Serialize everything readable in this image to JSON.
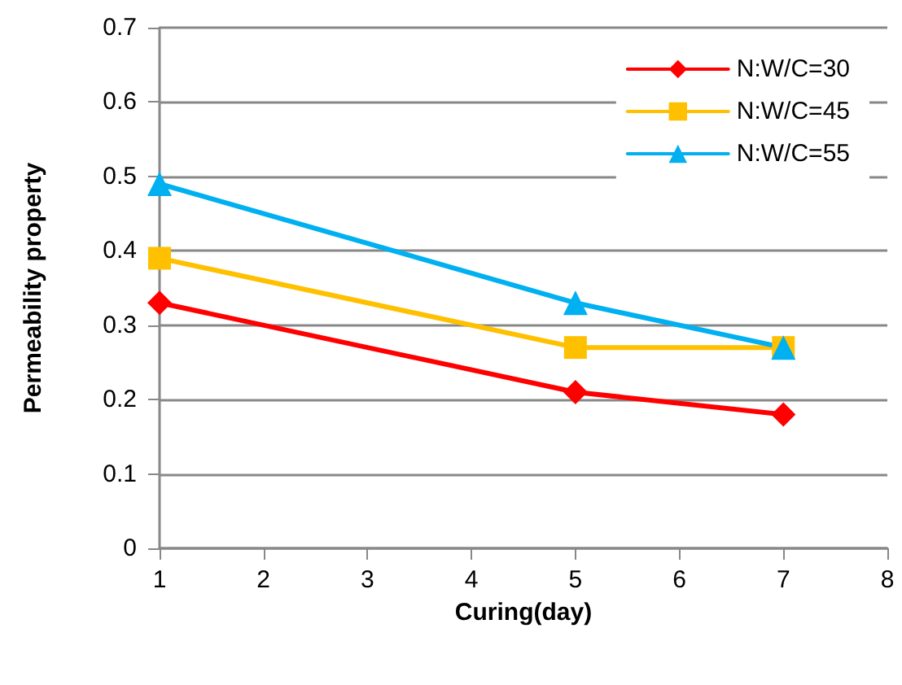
{
  "chart_data": {
    "type": "line",
    "xlabel": "Curing(day)",
    "ylabel": "Permeability property",
    "x": [
      1,
      5,
      7
    ],
    "series": [
      {
        "name": "N:W/C=30",
        "color": "#ff0000",
        "marker": "diamond",
        "values": [
          0.33,
          0.21,
          0.18
        ]
      },
      {
        "name": "N:W/C=45",
        "color": "#ffc000",
        "marker": "square",
        "values": [
          0.39,
          0.27,
          0.27
        ]
      },
      {
        "name": "N:W/C=55",
        "color": "#00b0f0",
        "marker": "triangle",
        "values": [
          0.49,
          0.33,
          0.27
        ]
      }
    ],
    "xlim": [
      1,
      8
    ],
    "xticks": [
      1,
      2,
      3,
      4,
      5,
      6,
      7,
      8
    ],
    "ylim": [
      0,
      0.7
    ],
    "yticks": [
      0,
      0.1,
      0.2,
      0.3,
      0.4,
      0.5,
      0.6,
      0.7
    ],
    "grid": "y",
    "legend": "top right",
    "line_style": "solid"
  }
}
